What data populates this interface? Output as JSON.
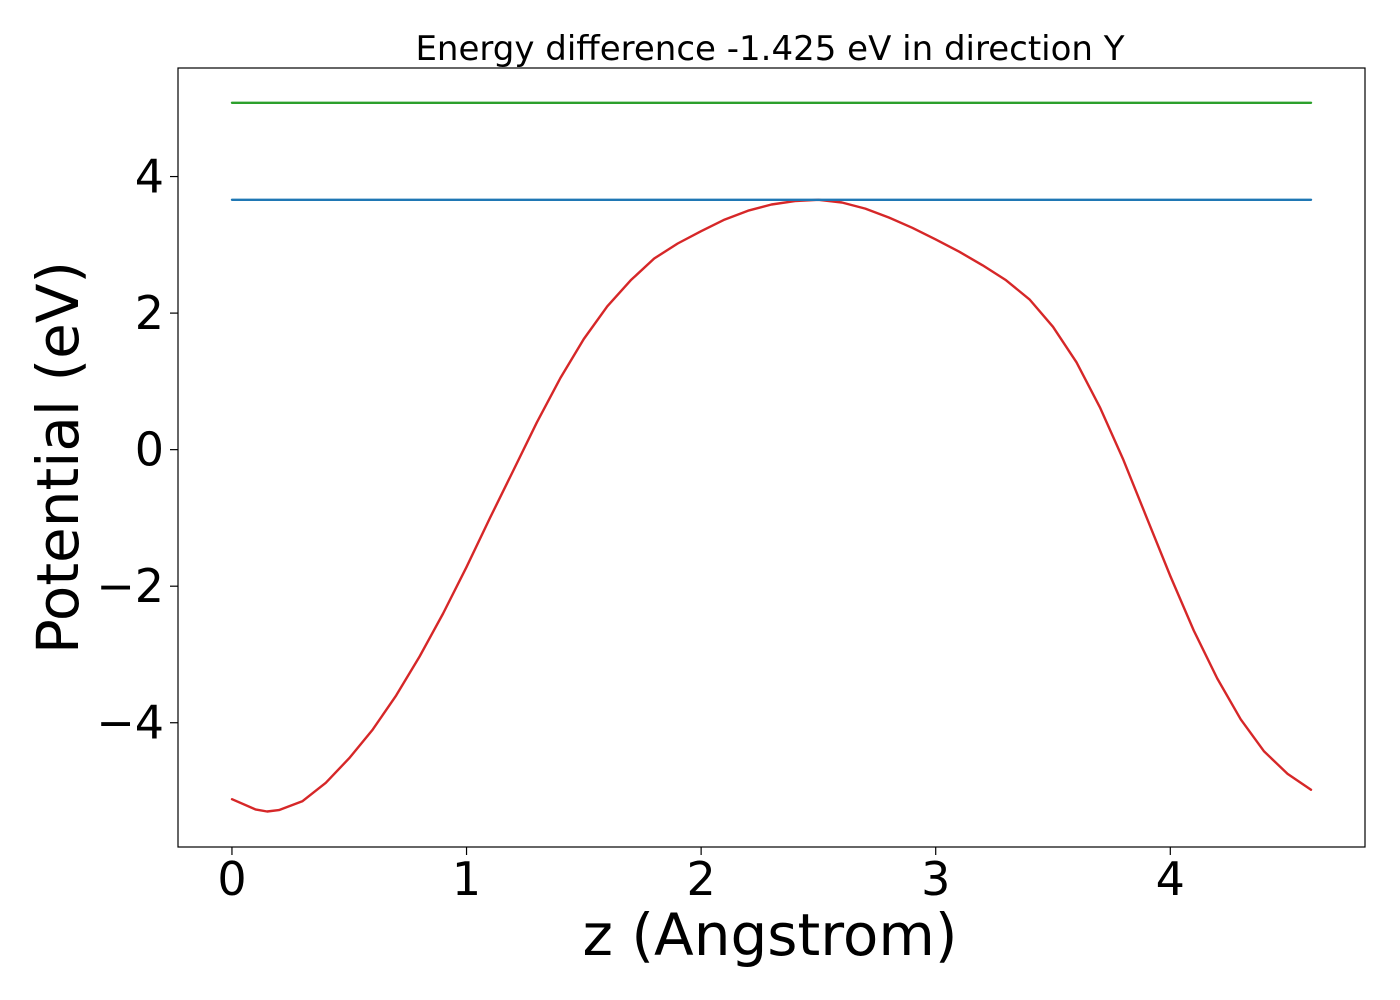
{
  "chart_data": {
    "type": "line",
    "title": "Energy difference -1.425 eV in direction Y",
    "xlabel": "z (Angstrom)",
    "ylabel": "Potential (eV)",
    "xlim": [
      -0.23,
      4.83
    ],
    "ylim": [
      -5.82,
      5.59
    ],
    "xticks": [
      0,
      1,
      2,
      3,
      4
    ],
    "xtick_labels": [
      "0",
      "1",
      "2",
      "3",
      "4"
    ],
    "yticks": [
      -4,
      -2,
      0,
      2,
      4
    ],
    "ytick_labels": [
      "−4",
      "−2",
      "0",
      "2",
      "4"
    ],
    "grid": false,
    "series": [
      {
        "color": "#d62728",
        "x": [
          0.0,
          0.1,
          0.15,
          0.2,
          0.3,
          0.4,
          0.5,
          0.6,
          0.7,
          0.8,
          0.9,
          1.0,
          1.1,
          1.2,
          1.3,
          1.4,
          1.5,
          1.6,
          1.7,
          1.8,
          1.9,
          2.0,
          2.1,
          2.2,
          2.3,
          2.4,
          2.5,
          2.6,
          2.7,
          2.8,
          2.9,
          3.0,
          3.1,
          3.2,
          3.3,
          3.4,
          3.5,
          3.6,
          3.7,
          3.8,
          3.9,
          4.0,
          4.1,
          4.2,
          4.3,
          4.4,
          4.5,
          4.6
        ],
        "y": [
          -5.12,
          -5.27,
          -5.3,
          -5.28,
          -5.15,
          -4.88,
          -4.52,
          -4.1,
          -3.6,
          -3.03,
          -2.4,
          -1.72,
          -1.0,
          -0.3,
          0.4,
          1.05,
          1.62,
          2.1,
          2.48,
          2.8,
          3.02,
          3.2,
          3.37,
          3.5,
          3.59,
          3.64,
          3.66,
          3.62,
          3.53,
          3.4,
          3.25,
          3.08,
          2.9,
          2.7,
          2.48,
          2.2,
          1.8,
          1.28,
          0.62,
          -0.15,
          -1.0,
          -1.85,
          -2.65,
          -3.35,
          -3.95,
          -4.42,
          -4.75,
          -4.98
        ]
      },
      {
        "color": "#1f77b4",
        "x": [
          0.0,
          4.6
        ],
        "y": [
          3.66,
          3.66
        ]
      },
      {
        "color": "#2ca02c",
        "x": [
          0.0,
          4.6
        ],
        "y": [
          5.08,
          5.08
        ]
      }
    ]
  }
}
